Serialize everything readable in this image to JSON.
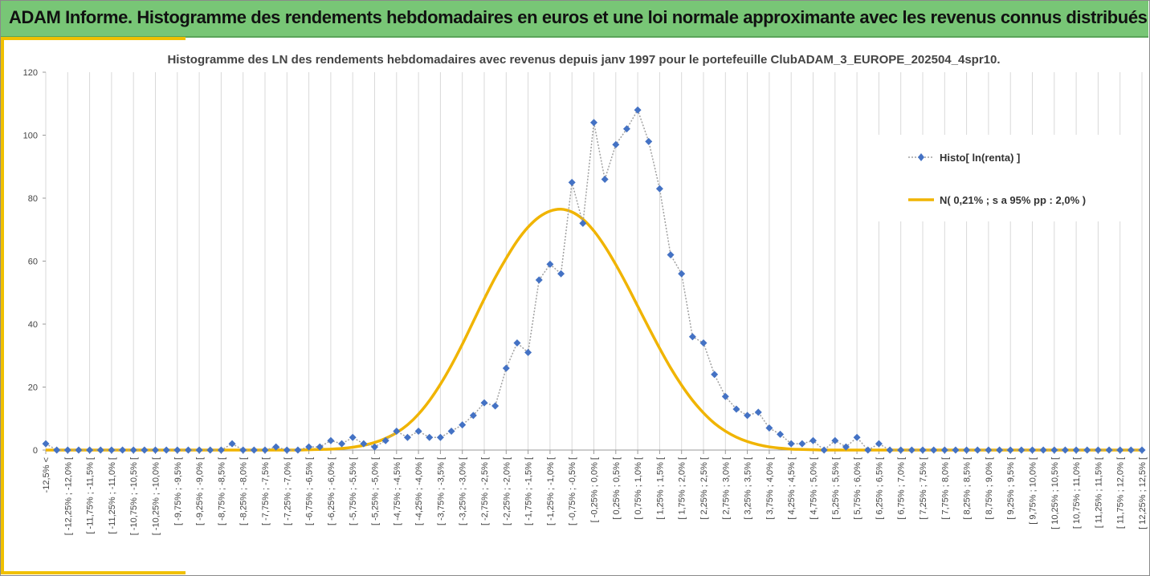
{
  "banner": {
    "title": "ADAM Informe. Histogramme des rendements hebdomadaires en euros et une loi normale approximante avec les revenus connus distribués"
  },
  "colors": {
    "banner_bg": "#78c676",
    "accent": "#f0c000",
    "histo": "#4472c4",
    "normal": "#f0b400",
    "grid": "#d9d9d9"
  },
  "chart_data": {
    "type": "line",
    "title": "Histogramme des LN des rendements hebdomadaires avec revenus depuis janv 1997 pour le portefeuille ClubADAM_3_EUROPE_202504_4spr10.",
    "ylim": [
      0,
      120
    ],
    "yticks": [
      0,
      20,
      40,
      60,
      80,
      100,
      120
    ],
    "grid": true,
    "legend_position": "right",
    "categories": [
      "-12,5% <",
      "[ -12,25% ; -12,0% [",
      "[ -11,75% ; -11,5% [",
      "[ -11,25% ; -11,0% [",
      "[ -10,75% ; -10,5% [",
      "[ -10,25% ; -10,0% [",
      "[ -9,75% ; -9,5% [",
      "[ -9,25% ; -9,0% [",
      "[ -8,75% ; -8,5% [",
      "[ -8,25% ; -8,0% [",
      "[ -7,75% ; -7,5% [",
      "[ -7,25% ; -7,0% [",
      "[ -6,75% ; -6,5% [",
      "[ -6,25% ; -6,0% [",
      "[ -5,75% ; -5,5% [",
      "[ -5,25% ; -5,0% [",
      "[ -4,75% ; -4,5% [",
      "[ -4,25% ; -4,0% [",
      "[ -3,75% ; -3,5% [",
      "[ -3,25% ; -3,0% [",
      "[ -2,75% ; -2,5% [",
      "[ -2,25% ; -2,0% [",
      "[ -1,75% ; -1,5% [",
      "[ -1,25% ; -1,0% [",
      "[ -0,75% ; -0,5% [",
      "[ -0,25% ; 0,0% [",
      "[ 0,25% ; 0,5% [",
      "[ 0,75% ; 1,0% [",
      "[ 1,25% ; 1,5% [",
      "[ 1,75% ; 2,0% [",
      "[ 2,25% ; 2,5% [",
      "[ 2,75% ; 3,0% [",
      "[ 3,25% ; 3,5% [",
      "[ 3,75% ; 4,0% [",
      "[ 4,25% ; 4,5% [",
      "[ 4,75% ; 5,0% [",
      "[ 5,25% ; 5,5% [",
      "[ 5,75% ; 6,0% [",
      "[ 6,25% ; 6,5% [",
      "[ 6,75% ; 7,0% [",
      "[ 7,25% ; 7,5% [",
      "[ 7,75% ; 8,0% [",
      "[ 8,25% ; 8,5% [",
      "[ 8,75% ; 9,0% [",
      "[ 9,25% ; 9,5% [",
      "[ 9,75% ; 10,0% [",
      "[ 10,25% ; 10,5% [",
      "[ 10,75% ; 11,0% [",
      "[ 11,25% ; 11,5% [",
      "[ 11,75% ; 12,0% [",
      "[ 12,25% ; 12,5% ["
    ],
    "x": [
      -12.5,
      -12.25,
      -12,
      -11.75,
      -11.5,
      -11.25,
      -11,
      -10.75,
      -10.5,
      -10.25,
      -10,
      -9.75,
      -9.5,
      -9.25,
      -9,
      -8.75,
      -8.5,
      -8.25,
      -8,
      -7.75,
      -7.5,
      -7.25,
      -7,
      -6.75,
      -6.5,
      -6.25,
      -6,
      -5.75,
      -5.5,
      -5.25,
      -5,
      -4.75,
      -4.5,
      -4.25,
      -4,
      -3.75,
      -3.5,
      -3.25,
      -3,
      -2.75,
      -2.5,
      -2.25,
      -2,
      -1.75,
      -1.5,
      -1.25,
      -1,
      -0.75,
      -0.5,
      -0.25,
      0,
      0.25,
      0.5,
      0.75,
      1,
      1.25,
      1.5,
      1.75,
      2,
      2.25,
      2.5,
      2.75,
      3,
      3.25,
      3.5,
      3.75,
      4,
      4.25,
      4.5,
      4.75,
      5,
      5.25,
      5.5,
      5.75,
      6,
      6.25,
      6.5,
      6.75,
      7,
      7.25,
      7.5,
      7.75,
      8,
      8.25,
      8.5,
      8.75,
      9,
      9.25,
      9.5,
      9.75,
      10,
      10.25,
      10.5,
      10.75,
      11,
      11.25,
      11.5,
      11.75,
      12,
      12.25,
      12.5
    ],
    "series": [
      {
        "name": "Histo[ ln(renta) ]",
        "style": "dotted-gray-line-with-blue-diamonds",
        "values": [
          2,
          0,
          0,
          0,
          0,
          0,
          0,
          0,
          0,
          0,
          0,
          0,
          0,
          0,
          0,
          0,
          0,
          2,
          0,
          0,
          0,
          1,
          0,
          0,
          1,
          1,
          3,
          2,
          4,
          2,
          1,
          3,
          6,
          4,
          6,
          4,
          4,
          6,
          8,
          11,
          15,
          14,
          26,
          34,
          31,
          54,
          59,
          56,
          85,
          72,
          104,
          86,
          97,
          102,
          108,
          98,
          83,
          62,
          56,
          36,
          34,
          24,
          17,
          13,
          11,
          12,
          7,
          5,
          2,
          2,
          3,
          0,
          3,
          1,
          4,
          0,
          2,
          0,
          0,
          0,
          0,
          0,
          0,
          0,
          0,
          0,
          0,
          0,
          0,
          0,
          0,
          0,
          0,
          0,
          0,
          0,
          0,
          0,
          0,
          0,
          0
        ]
      },
      {
        "name": "N( 0,21% ; s a 95% pp : 2,0% )",
        "style": "solid-yellow-line",
        "values": [
          0,
          0,
          0,
          0,
          0,
          0,
          0,
          0,
          0,
          0,
          0,
          0,
          0,
          0,
          0,
          0,
          0,
          0,
          0,
          0,
          0,
          0,
          0,
          0,
          0.1,
          0.2,
          0.3,
          0.5,
          0.9,
          1.5,
          2.4,
          3.7,
          5.5,
          8,
          11.4,
          15.7,
          20.9,
          26.9,
          33.6,
          40.8,
          48,
          54.8,
          60.9,
          66.4,
          70.8,
          74,
          75.9,
          76.5,
          75.6,
          73.3,
          69.6,
          64.7,
          58.9,
          52.5,
          45.7,
          38.9,
          32.3,
          26.1,
          20.6,
          15.8,
          11.8,
          8.5,
          6,
          4.1,
          2.7,
          1.7,
          1,
          0.6,
          0.3,
          0.2,
          0.1,
          0,
          0,
          0,
          0,
          0,
          0,
          0,
          0,
          0,
          0,
          0,
          0,
          0,
          0,
          0,
          0,
          0,
          0,
          0,
          0,
          0,
          0,
          0,
          0,
          0,
          0,
          0,
          0,
          0,
          0
        ]
      }
    ]
  }
}
